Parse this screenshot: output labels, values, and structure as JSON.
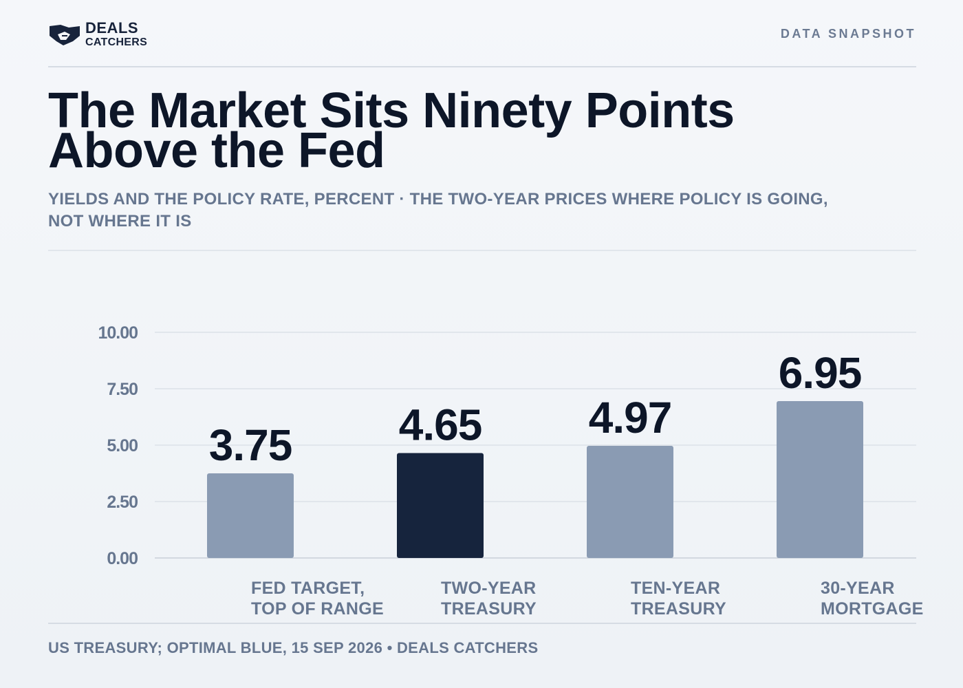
{
  "brand": {
    "line1": "DEALS",
    "line2": "CATCHERS",
    "icon": "handshake-icon",
    "color": "#17233b"
  },
  "header": {
    "tag": "DATA SNAPSHOT"
  },
  "headline": {
    "line1": "The Market Sits Ninety Points",
    "line2": "Above the Fed"
  },
  "subtitle": {
    "line1": "YIELDS AND THE POLICY RATE, PERCENT · THE TWO-YEAR PRICES WHERE POLICY IS GOING,",
    "line2": "NOT WHERE IT IS"
  },
  "colors": {
    "bar": "#8a9bb3",
    "highlight": "#16243d",
    "label": "#0d1628",
    "axis": "#66768f",
    "grid": "#e1e6ec"
  },
  "chart_data": {
    "type": "bar",
    "categories": [
      [
        "FED TARGET,",
        "TOP OF RANGE"
      ],
      [
        "TWO-YEAR",
        "TREASURY"
      ],
      [
        "TEN-YEAR",
        "TREASURY"
      ],
      [
        "30-YEAR",
        "MORTGAGE"
      ]
    ],
    "values": [
      3.75,
      4.65,
      4.97,
      6.95
    ],
    "value_labels": [
      "3.75",
      "4.65",
      "4.97",
      "6.95"
    ],
    "highlight_index": 1,
    "ylim": [
      0,
      10
    ],
    "yticks": [
      0,
      2.5,
      5,
      7.5,
      10
    ],
    "ytick_labels": [
      "0.00",
      "2.50",
      "5.00",
      "7.50",
      "10.00"
    ],
    "grid": true,
    "legend": "none"
  },
  "footer": {
    "source": "US TREASURY; OPTIMAL BLUE, 15 SEP 2026 • DEALS CATCHERS"
  }
}
